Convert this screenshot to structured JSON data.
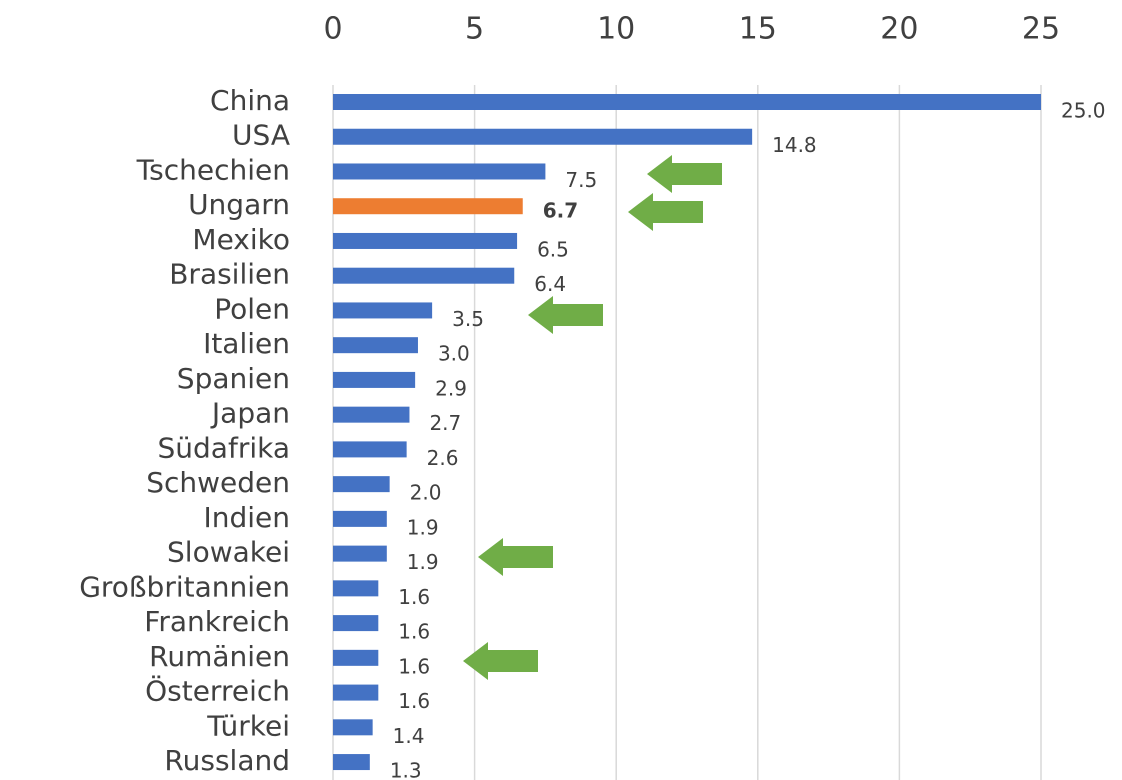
{
  "chart_data": {
    "type": "hbar",
    "categories": [
      "China",
      "USA",
      "Tschechien",
      "Ungarn",
      "Mexiko",
      "Brasilien",
      "Polen",
      "Italien",
      "Spanien",
      "Japan",
      "Südafrika",
      "Schweden",
      "Indien",
      "Slowakei",
      "Großbritannien",
      "Frankreich",
      "Rumänien",
      "Österreich",
      "Türkei",
      "Russland"
    ],
    "values": [
      25.0,
      14.8,
      7.5,
      6.7,
      6.5,
      6.4,
      3.5,
      3.0,
      2.9,
      2.7,
      2.6,
      2.0,
      1.9,
      1.9,
      1.6,
      1.6,
      1.6,
      1.6,
      1.4,
      1.3
    ],
    "value_labels": [
      "25.0",
      "14.8",
      "7.5",
      "6.7",
      "6.5",
      "6.4",
      "3.5",
      "3.0",
      "2.9",
      "2.7",
      "2.6",
      "2.0",
      "1.9",
      "1.9",
      "1.6",
      "1.6",
      "1.6",
      "1.6",
      "1.4",
      "1.3"
    ],
    "color": "#4472c4",
    "highlight": "Ungarn",
    "highlight_color": "#ed7d31",
    "xlim": [
      0,
      25
    ],
    "xticks": [
      0,
      5,
      10,
      15,
      20,
      25
    ],
    "grid": true
  }
}
